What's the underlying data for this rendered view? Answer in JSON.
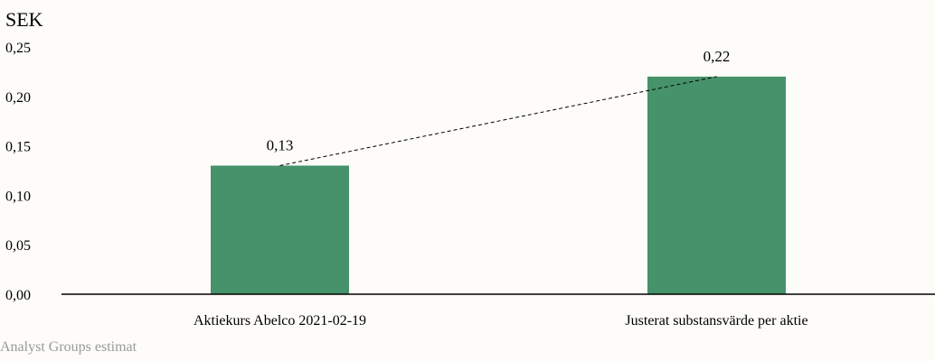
{
  "chart_data": {
    "type": "bar",
    "unit_label": "SEK",
    "categories": [
      "Aktiekurs Abelco 2021-02-19",
      "Justerat substansvärde per aktie"
    ],
    "values": [
      0.13,
      0.22
    ],
    "data_labels": [
      "0,13",
      "0,22"
    ],
    "ylim": [
      0,
      0.25
    ],
    "yticks": [
      0,
      0.05,
      0.1,
      0.15,
      0.2,
      0.25
    ],
    "ytick_labels": [
      "0,00",
      "0,05",
      "0,10",
      "0,15",
      "0,20",
      "0,25"
    ],
    "bar_color": "#46926a",
    "connector": "dashed line between bar tops",
    "grid": false
  },
  "source_note": "Analyst Groups estimat"
}
